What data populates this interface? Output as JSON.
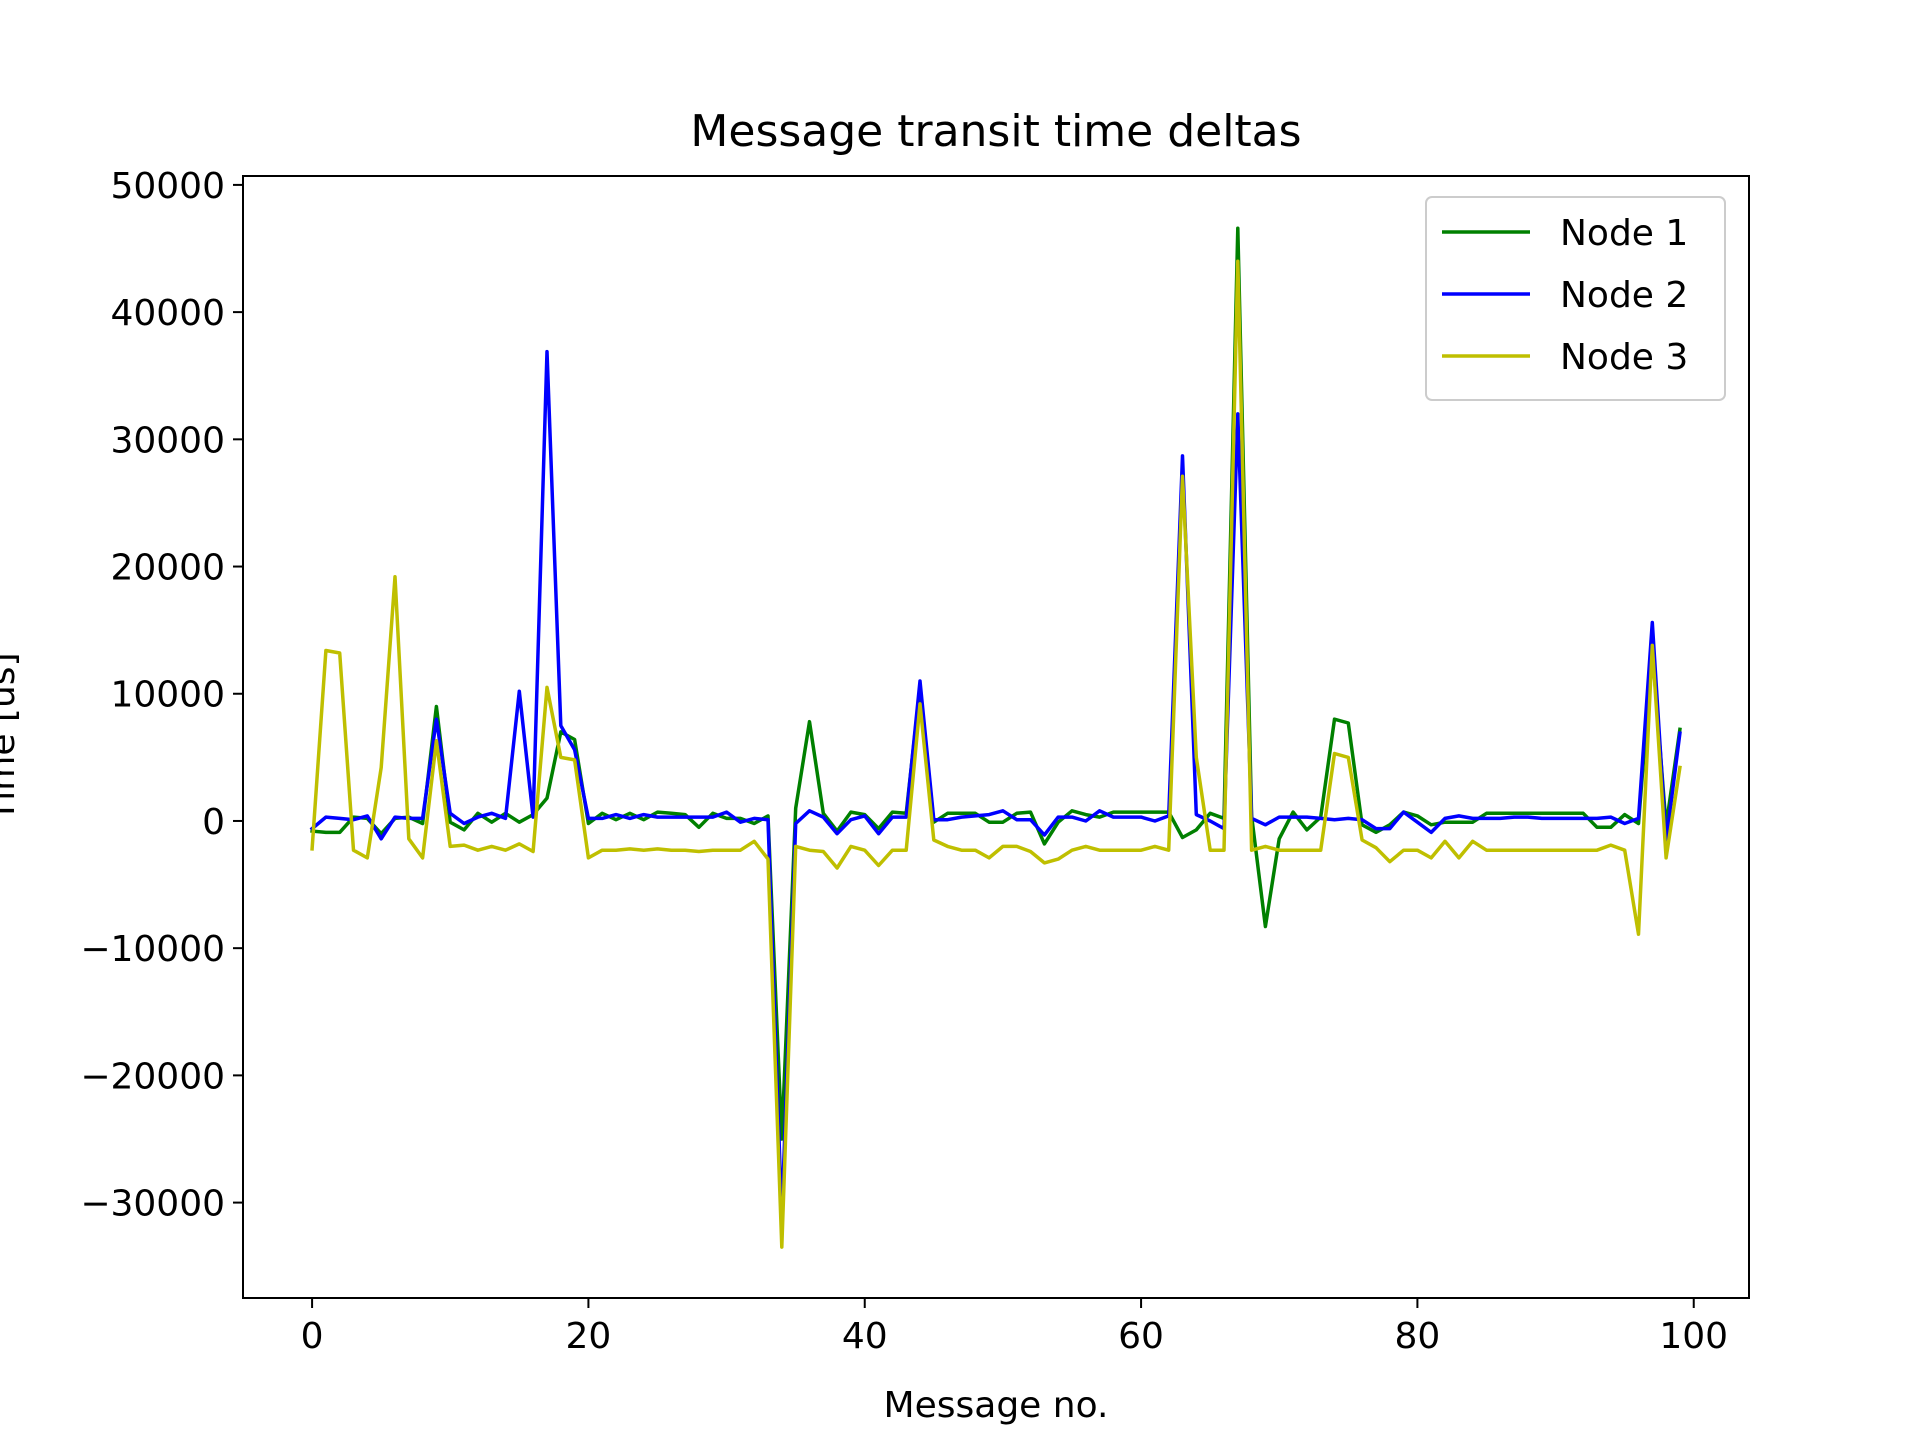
{
  "chart_data": {
    "type": "line",
    "title": "Message transit time deltas",
    "xlabel": "Message no.",
    "ylabel": "Time [us]",
    "xlim": [
      -5,
      104
    ],
    "ylim": [
      -37500,
      50700
    ],
    "grid": false,
    "legend_position": "top-right",
    "xticks": [
      0,
      20,
      40,
      60,
      80,
      100
    ],
    "yticks": [
      -30000,
      -20000,
      -10000,
      0,
      10000,
      20000,
      30000,
      40000,
      50000
    ],
    "xtick_labels": [
      "0",
      "20",
      "40",
      "60",
      "80",
      "100"
    ],
    "ytick_labels": [
      "−30000",
      "−20000",
      "−10000",
      "0",
      "10000",
      "20000",
      "30000",
      "40000",
      "50000"
    ],
    "series": [
      {
        "name": "Node 1",
        "color": "#008000",
        "x": [
          0,
          1,
          2,
          3,
          4,
          5,
          6,
          7,
          8,
          9,
          10,
          11,
          12,
          13,
          14,
          15,
          16,
          17,
          18,
          19,
          20,
          21,
          22,
          23,
          24,
          25,
          26,
          27,
          28,
          29,
          30,
          31,
          32,
          33,
          34,
          35,
          36,
          37,
          38,
          39,
          40,
          41,
          42,
          43,
          44,
          45,
          46,
          47,
          48,
          49,
          50,
          51,
          52,
          53,
          54,
          55,
          56,
          57,
          58,
          59,
          60,
          61,
          62,
          63,
          64,
          65,
          66,
          67,
          68,
          69,
          70,
          71,
          72,
          73,
          74,
          75,
          76,
          77,
          78,
          79,
          80,
          81,
          82,
          83,
          84,
          85,
          86,
          87,
          88,
          89,
          90,
          91,
          92,
          93,
          94,
          95,
          96,
          97,
          98,
          99
        ],
        "y": [
          -800,
          -900,
          -900,
          300,
          200,
          -1000,
          200,
          300,
          -200,
          9000,
          -100,
          -700,
          600,
          -100,
          600,
          -100,
          500,
          1800,
          7000,
          6400,
          -200,
          600,
          100,
          600,
          100,
          700,
          600,
          500,
          -500,
          600,
          200,
          200,
          -200,
          400,
          -25000,
          1000,
          7800,
          600,
          -800,
          700,
          500,
          -600,
          700,
          600,
          10500,
          -100,
          600,
          600,
          600,
          -100,
          -100,
          600,
          700,
          -1800,
          -100,
          800,
          500,
          300,
          700,
          700,
          700,
          700,
          700,
          -1300,
          -700,
          600,
          200,
          46600,
          400,
          -8300,
          -1400,
          700,
          -700,
          300,
          8000,
          7700,
          -300,
          -900,
          -300,
          700,
          400,
          -300,
          -100,
          -100,
          -100,
          600,
          600,
          600,
          600,
          600,
          600,
          600,
          600,
          -500,
          -500,
          500,
          -200,
          13500,
          -400,
          7200
        ]
      },
      {
        "name": "Node 2",
        "color": "#0000ff",
        "x": [
          0,
          1,
          2,
          3,
          4,
          5,
          6,
          7,
          8,
          9,
          10,
          11,
          12,
          13,
          14,
          15,
          16,
          17,
          18,
          19,
          20,
          21,
          22,
          23,
          24,
          25,
          26,
          27,
          28,
          29,
          30,
          31,
          32,
          33,
          34,
          35,
          36,
          37,
          38,
          39,
          40,
          41,
          42,
          43,
          44,
          45,
          46,
          47,
          48,
          49,
          50,
          51,
          52,
          53,
          54,
          55,
          56,
          57,
          58,
          59,
          60,
          61,
          62,
          63,
          64,
          65,
          66,
          67,
          68,
          69,
          70,
          71,
          72,
          73,
          74,
          75,
          76,
          77,
          78,
          79,
          80,
          81,
          82,
          83,
          84,
          85,
          86,
          87,
          88,
          89,
          90,
          91,
          92,
          93,
          94,
          95,
          96,
          97,
          98,
          99
        ],
        "y": [
          -600,
          300,
          200,
          100,
          400,
          -1400,
          300,
          200,
          200,
          8000,
          600,
          -200,
          300,
          600,
          200,
          10200,
          300,
          36900,
          7500,
          5600,
          200,
          200,
          500,
          200,
          500,
          300,
          300,
          300,
          300,
          300,
          700,
          -100,
          200,
          100,
          -31300,
          -200,
          800,
          300,
          -1000,
          100,
          400,
          -1000,
          300,
          300,
          11000,
          100,
          100,
          300,
          400,
          500,
          800,
          100,
          100,
          -1100,
          300,
          300,
          0,
          800,
          300,
          300,
          300,
          0,
          400,
          28700,
          500,
          0,
          -600,
          32000,
          200,
          -300,
          300,
          300,
          300,
          200,
          100,
          200,
          100,
          -600,
          -600,
          700,
          -100,
          -900,
          200,
          400,
          200,
          200,
          200,
          300,
          300,
          200,
          200,
          200,
          200,
          200,
          300,
          -200,
          200,
          15600,
          -1600,
          6900
        ]
      },
      {
        "name": "Node 3",
        "color": "#bfbf00",
        "x": [
          0,
          1,
          2,
          3,
          4,
          5,
          6,
          7,
          8,
          9,
          10,
          11,
          12,
          13,
          14,
          15,
          16,
          17,
          18,
          19,
          20,
          21,
          22,
          23,
          24,
          25,
          26,
          27,
          28,
          29,
          30,
          31,
          32,
          33,
          34,
          35,
          36,
          37,
          38,
          39,
          40,
          41,
          42,
          43,
          44,
          45,
          46,
          47,
          48,
          49,
          50,
          51,
          52,
          53,
          54,
          55,
          56,
          57,
          58,
          59,
          60,
          61,
          62,
          63,
          64,
          65,
          66,
          67,
          68,
          69,
          70,
          71,
          72,
          73,
          74,
          75,
          76,
          77,
          78,
          79,
          80,
          81,
          82,
          83,
          84,
          85,
          86,
          87,
          88,
          89,
          90,
          91,
          92,
          93,
          94,
          95,
          96,
          97,
          98,
          99
        ],
        "y": [
          -2200,
          13400,
          13200,
          -2300,
          -2900,
          4200,
          19200,
          -1400,
          -2900,
          6300,
          -2000,
          -1900,
          -2300,
          -2000,
          -2300,
          -1800,
          -2400,
          10500,
          5000,
          4800,
          -2900,
          -2300,
          -2300,
          -2200,
          -2300,
          -2200,
          -2300,
          -2300,
          -2400,
          -2300,
          -2300,
          -2300,
          -1600,
          -3000,
          -33500,
          -2000,
          -2300,
          -2400,
          -3700,
          -2000,
          -2300,
          -3500,
          -2300,
          -2300,
          9200,
          -1500,
          -2000,
          -2300,
          -2300,
          -2900,
          -2000,
          -2000,
          -2400,
          -3300,
          -3000,
          -2300,
          -2000,
          -2300,
          -2300,
          -2300,
          -2300,
          -2000,
          -2300,
          27100,
          5000,
          -2300,
          -2300,
          44000,
          -2300,
          -2000,
          -2300,
          -2300,
          -2300,
          -2300,
          5300,
          5000,
          -1500,
          -2100,
          -3200,
          -2300,
          -2300,
          -2900,
          -1600,
          -2900,
          -1600,
          -2300,
          -2300,
          -2300,
          -2300,
          -2300,
          -2300,
          -2300,
          -2300,
          -2300,
          -1900,
          -2300,
          -8900,
          13800,
          -2900,
          4200
        ]
      }
    ]
  }
}
